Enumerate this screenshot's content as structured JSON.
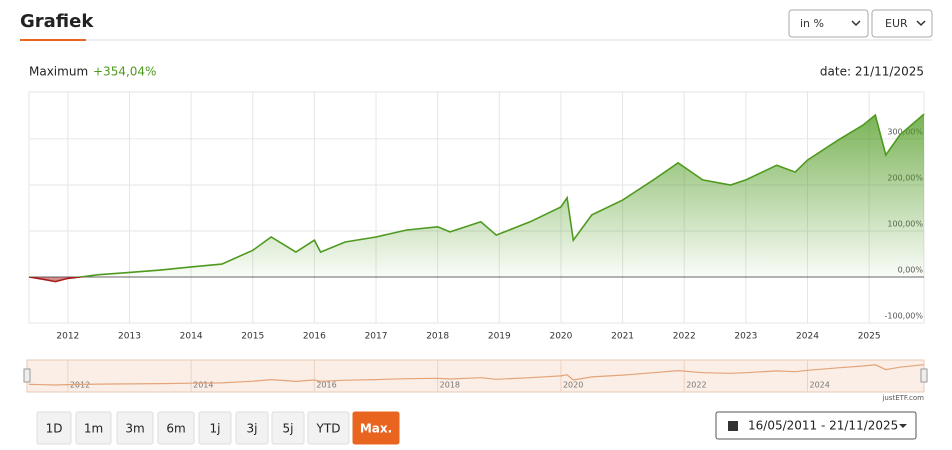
{
  "header": {
    "title": "Grafiek",
    "unit_select": "in %",
    "currency_select": "EUR"
  },
  "summary": {
    "label": "Maximum",
    "value": "+354,04%",
    "date": "date: 21/11/2025"
  },
  "chart_data": {
    "type": "line",
    "x": [
      2011.37,
      2011.6,
      2011.8,
      2012.0,
      2012.2,
      2012.5,
      2013.0,
      2013.5,
      2014.0,
      2014.5,
      2015.0,
      2015.3,
      2015.7,
      2016.0,
      2016.1,
      2016.5,
      2017.0,
      2017.5,
      2018.0,
      2018.2,
      2018.7,
      2018.95,
      2019.5,
      2020.0,
      2020.1,
      2020.2,
      2020.5,
      2021.0,
      2021.5,
      2021.9,
      2022.3,
      2022.75,
      2023.0,
      2023.5,
      2023.8,
      2024.0,
      2024.5,
      2024.9,
      2025.1,
      2025.27,
      2025.5,
      2025.89
    ],
    "series": [
      {
        "color": "#4e9a1f",
        "negative_color": "#a61c1c",
        "values": [
          0,
          -5,
          -10,
          -3,
          0,
          5,
          10,
          15,
          22,
          28,
          58,
          87,
          54,
          80,
          54,
          76,
          87,
          102,
          109,
          98,
          120,
          91,
          120,
          152,
          172,
          80,
          135,
          167,
          211,
          248,
          211,
          200,
          211,
          243,
          228,
          254,
          298,
          330,
          352,
          265,
          309,
          354
        ]
      }
    ],
    "xlim": [
      2011.37,
      2025.89
    ],
    "xticks": [
      2012,
      2013,
      2014,
      2015,
      2016,
      2017,
      2018,
      2019,
      2020,
      2021,
      2022,
      2023,
      2024,
      2025
    ],
    "ylim": [
      -100,
      402
    ],
    "yticks": [
      {
        "value": -100,
        "label": "-100,00%"
      },
      {
        "value": 0,
        "label": "0,00%"
      },
      {
        "value": 100,
        "label": "100,00%"
      },
      {
        "value": 200,
        "label": "200,00%"
      },
      {
        "value": 300,
        "label": "300,00%"
      }
    ],
    "grid": true
  },
  "navigator": {
    "xticks": [
      2012,
      2014,
      2016,
      2018,
      2020,
      2022,
      2024
    ],
    "color": "#e3a47a",
    "credit": "justETF.com"
  },
  "buttons": [
    "1D",
    "1m",
    "3m",
    "6m",
    "1j",
    "3j",
    "5j",
    "YTD",
    "Max."
  ],
  "date_range": "16/05/2011 - 21/11/2025"
}
